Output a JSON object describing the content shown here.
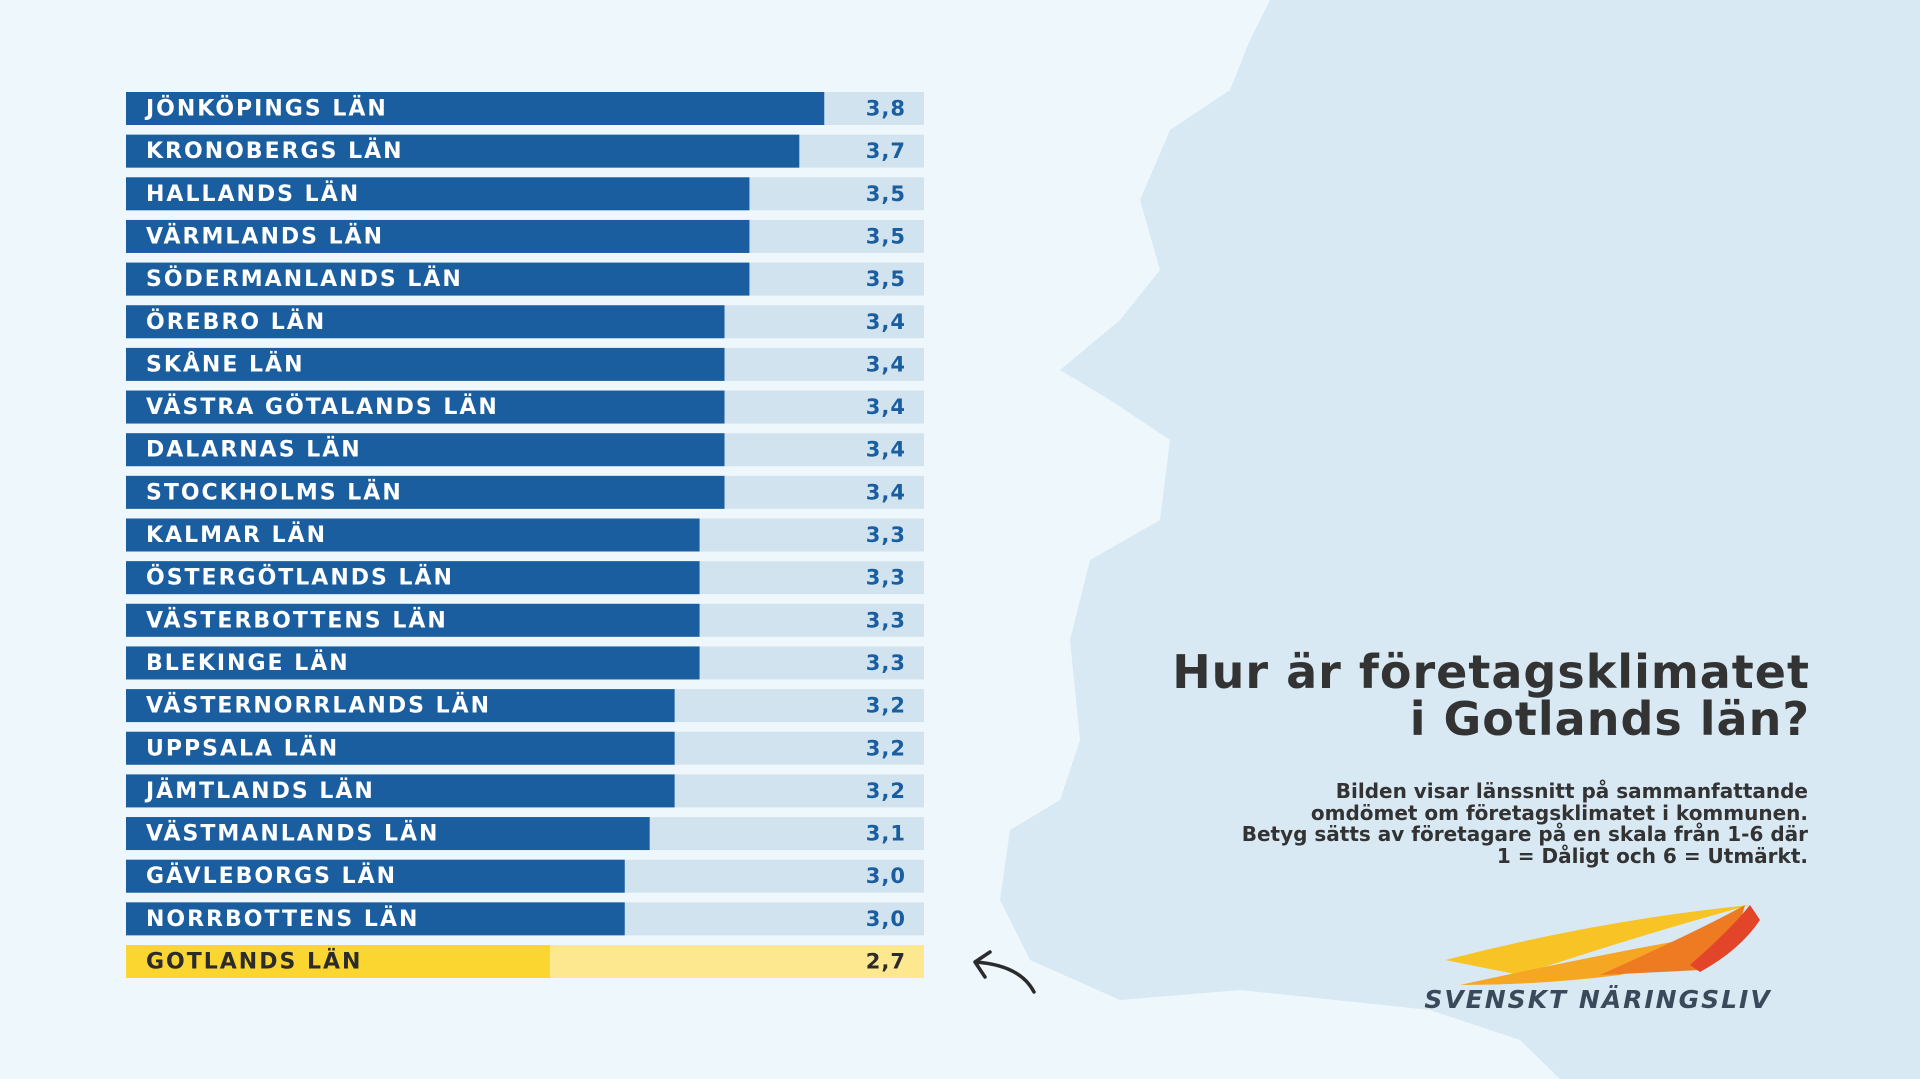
{
  "chart_data": {
    "type": "barh",
    "title": [
      "Hur är företagsklimatet",
      "i Gotlands län?"
    ],
    "subtitle": [
      "Bilden visar länssnitt på sammanfattande",
      "omdömet om företagsklimatet i kommunen.",
      "Betyg sätts av företagare på en skala från 1-6 där",
      "1 = Dåligt och 6 = Utmärkt."
    ],
    "logo_text": "SVENSKT NÄRINGSLIV",
    "categories": [
      "JÖNKÖPINGS LÄN",
      "KRONOBERGS LÄN",
      "HALLANDS LÄN",
      "VÄRMLANDS LÄN",
      "SÖDERMANLANDS LÄN",
      "ÖREBRO LÄN",
      "SKÅNE LÄN",
      "VÄSTRA GÖTALANDS LÄN",
      "DALARNAS LÄN",
      "STOCKHOLMS LÄN",
      "KALMAR LÄN",
      "ÖSTERGÖTLANDS LÄN",
      "VÄSTERBOTTENS LÄN",
      "BLEKINGE LÄN",
      "VÄSTERNORRLANDS LÄN",
      "UPPSALA LÄN",
      "JÄMTLANDS LÄN",
      "VÄSTMANLANDS LÄN",
      "GÄVLEBORGS LÄN",
      "NORRBOTTENS LÄN",
      "GOTLANDS LÄN"
    ],
    "values": [
      3.8,
      3.7,
      3.5,
      3.5,
      3.5,
      3.4,
      3.4,
      3.4,
      3.4,
      3.4,
      3.3,
      3.3,
      3.3,
      3.3,
      3.2,
      3.2,
      3.2,
      3.1,
      3.0,
      3.0,
      2.7
    ],
    "value_labels": [
      "3,8",
      "3,7",
      "3,5",
      "3,5",
      "3,5",
      "3,4",
      "3,4",
      "3,4",
      "3,4",
      "3,4",
      "3,3",
      "3,3",
      "3,3",
      "3,3",
      "3,2",
      "3,2",
      "3,2",
      "3,1",
      "3,0",
      "3,0",
      "2,7"
    ],
    "colors": [
      "#1b5e9f",
      "#1b5e9f",
      "#1b5e9f",
      "#1b5e9f",
      "#1b5e9f",
      "#1b5e9f",
      "#1b5e9f",
      "#1b5e9f",
      "#1b5e9f",
      "#1b5e9f",
      "#1b5e9f",
      "#1b5e9f",
      "#1b5e9f",
      "#1b5e9f",
      "#1b5e9f",
      "#1b5e9f",
      "#1b5e9f",
      "#1b5e9f",
      "#1b5e9f",
      "#1b5e9f",
      "#fbd631"
    ],
    "track_colors": [
      "#d2e3f0",
      "#d2e3f0",
      "#d2e3f0",
      "#d2e3f0",
      "#d2e3f0",
      "#d2e3f0",
      "#d2e3f0",
      "#d2e3f0",
      "#d2e3f0",
      "#d2e3f0",
      "#d2e3f0",
      "#d2e3f0",
      "#d2e3f0",
      "#d2e3f0",
      "#d2e3f0",
      "#d2e3f0",
      "#d2e3f0",
      "#d2e3f0",
      "#d2e3f0",
      "#d2e3f0",
      "#fde88f"
    ],
    "xlim": [
      1,
      4.2
    ]
  }
}
